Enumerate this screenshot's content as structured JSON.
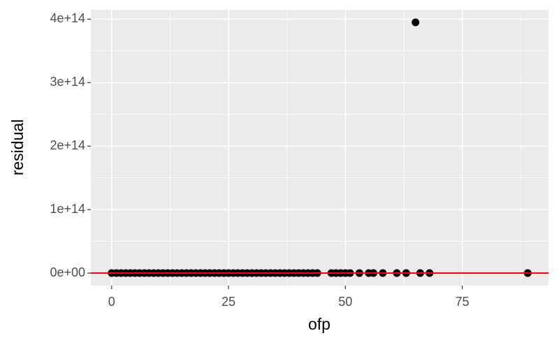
{
  "chart_data": {
    "type": "scatter",
    "x_label": "ofp",
    "y_label": "residual",
    "x": [
      0,
      1,
      2,
      3,
      4,
      5,
      6,
      7,
      8,
      9,
      10,
      11,
      12,
      13,
      14,
      15,
      16,
      17,
      18,
      19,
      20,
      21,
      22,
      23,
      24,
      25,
      26,
      27,
      28,
      29,
      30,
      31,
      32,
      33,
      34,
      35,
      36,
      37,
      38,
      39,
      40,
      41,
      42,
      43,
      44,
      47,
      48,
      49,
      50,
      51,
      53,
      55,
      56,
      58,
      61,
      63,
      65,
      66,
      68,
      89
    ],
    "values": [
      0,
      0,
      0,
      0,
      0,
      0,
      0,
      0,
      0,
      0,
      0,
      0,
      0,
      0,
      0,
      0,
      0,
      0,
      0,
      0,
      0,
      0,
      0,
      0,
      0,
      0,
      0,
      0,
      0,
      0,
      0,
      0,
      0,
      0,
      0,
      0,
      0,
      0,
      0,
      0,
      0,
      0,
      0,
      0,
      0,
      0,
      0,
      0,
      0,
      0,
      0,
      0,
      0,
      0,
      0,
      0,
      395000000000000,
      0,
      0,
      0
    ],
    "color": "#000000",
    "xlim": [
      -4.45,
      93.45
    ],
    "ylim": [
      -19750000000000,
      414750000000000
    ],
    "xticks": [
      0,
      25,
      50,
      75
    ],
    "yticks": [
      {
        "value": 0,
        "label": "0e+00"
      },
      {
        "value": 100000000000000,
        "label": "1e+14"
      },
      {
        "value": 200000000000000,
        "label": "2e+14"
      },
      {
        "value": 300000000000000,
        "label": "3e+14"
      },
      {
        "value": 400000000000000,
        "label": "4e+14"
      }
    ],
    "x_minor_ticks": [
      12.5,
      37.5,
      62.5,
      87.5
    ],
    "y_minor_ticks": [
      50000000000000,
      150000000000000,
      250000000000000,
      350000000000000
    ],
    "grid": true,
    "hline": 0,
    "hline_color": "#ff0000"
  }
}
